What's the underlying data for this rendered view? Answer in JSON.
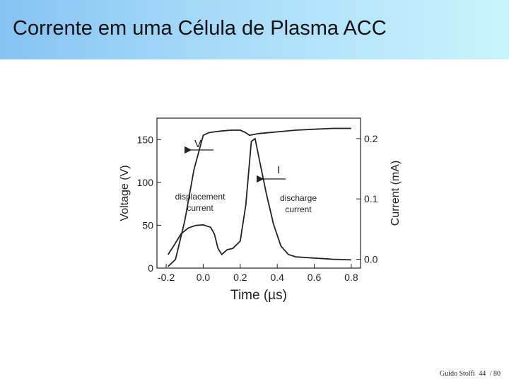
{
  "slide": {
    "title": "Corrente em uma Célula de Plasma ACC"
  },
  "footer": {
    "author": "Guido Stolfi",
    "page": "44",
    "total": "/ 80"
  },
  "chart_data": {
    "type": "line",
    "xlabel": "Time (µs)",
    "ylabel": "Voltage (V)",
    "y2label": "Current (mA)",
    "xlim": [
      -0.25,
      0.85
    ],
    "ylim": [
      0,
      175
    ],
    "y2lim": [
      -0.0146,
      0.2338
    ],
    "x_ticks": [
      "-0.2",
      "0.0",
      "0.2",
      "0.4",
      "0.6",
      "0.8"
    ],
    "x_tick_values": [
      -0.2,
      0.0,
      0.2,
      0.4,
      0.6,
      0.8
    ],
    "y_ticks": [
      "0",
      "50",
      "100",
      "150"
    ],
    "y_tick_values": [
      0,
      50,
      100,
      150
    ],
    "y2_ticks": [
      "0.0",
      "0.1",
      "0.2"
    ],
    "y2_tick_values": [
      0.0,
      0.1,
      0.2
    ],
    "grid": false,
    "series": [
      {
        "name": "V",
        "axis": "left",
        "x": [
          -0.19,
          -0.15,
          -0.1,
          -0.05,
          0.0,
          0.03,
          0.06,
          0.1,
          0.15,
          0.2,
          0.23,
          0.25,
          0.3,
          0.4,
          0.5,
          0.6,
          0.7,
          0.8
        ],
        "y": [
          2,
          10,
          55,
          115,
          155,
          158,
          159,
          160,
          161,
          161,
          158,
          155,
          157,
          159,
          161,
          162,
          163,
          163
        ]
      },
      {
        "name": "I",
        "axis": "right",
        "x": [
          -0.19,
          -0.16,
          -0.12,
          -0.08,
          -0.04,
          0.0,
          0.04,
          0.06,
          0.08,
          0.1,
          0.13,
          0.16,
          0.2,
          0.23,
          0.26,
          0.28,
          0.3,
          0.34,
          0.38,
          0.42,
          0.46,
          0.5,
          0.6,
          0.7,
          0.8
        ],
        "y": [
          0.008,
          0.022,
          0.042,
          0.052,
          0.056,
          0.057,
          0.053,
          0.042,
          0.018,
          0.008,
          0.016,
          0.018,
          0.03,
          0.09,
          0.195,
          0.2,
          0.17,
          0.11,
          0.058,
          0.022,
          0.008,
          0.004,
          0.002,
          0.0,
          -0.001
        ]
      }
    ],
    "annotations": [
      {
        "text": "V"
      },
      {
        "text": "I"
      },
      {
        "lines": [
          "displacement",
          "current"
        ]
      },
      {
        "lines": [
          "discharge",
          "current"
        ]
      }
    ]
  }
}
